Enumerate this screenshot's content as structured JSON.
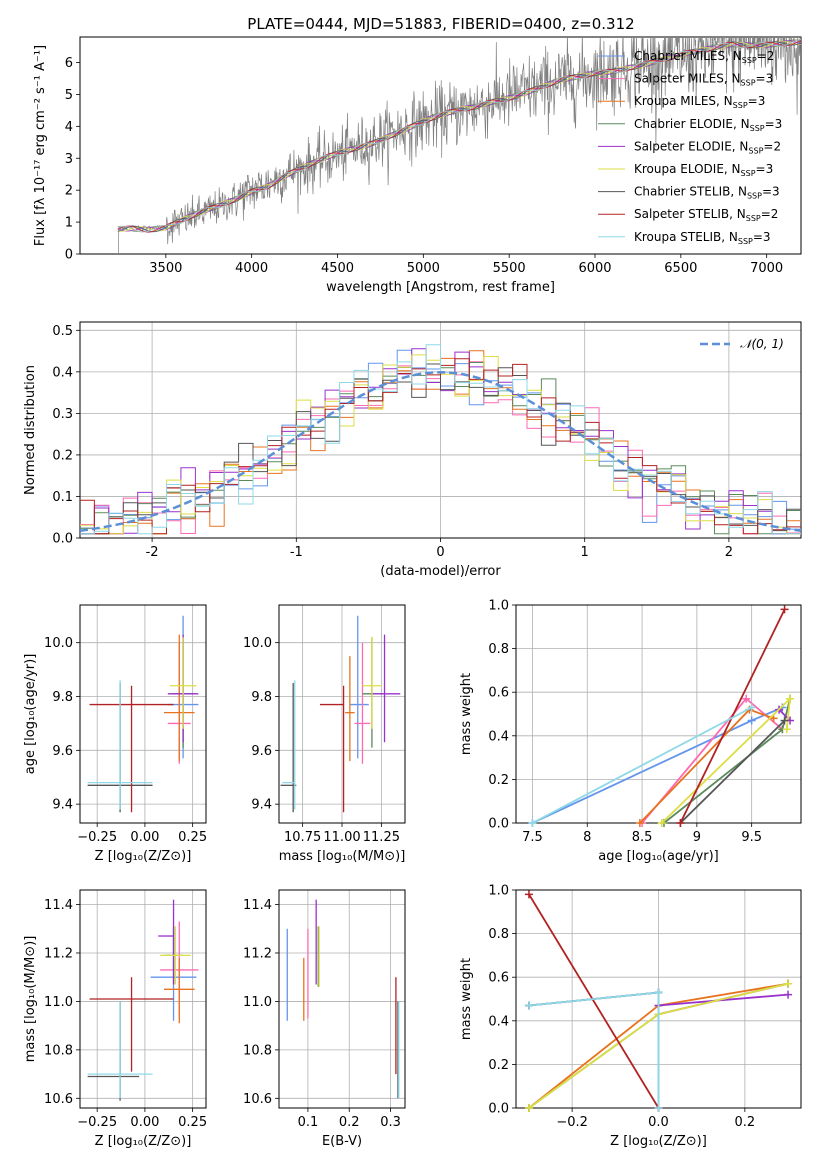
{
  "chart_data": [
    {
      "id": "spectrum",
      "type": "line",
      "title": "PLATE=0444, MJD=51883, FIBERID=0400, z=0.312",
      "xlabel": "wavelength [Angstrom, rest frame]",
      "ylabel": "Flux [fλ 10⁻¹⁷ erg cm⁻² s⁻¹ A⁻¹]",
      "xlim": [
        3000,
        7200
      ],
      "ylim": [
        0,
        6.8
      ],
      "xticks": [
        3500,
        4000,
        4500,
        5000,
        5500,
        6000,
        6500,
        7000
      ],
      "yticks": [
        0,
        1,
        2,
        3,
        4,
        5,
        6
      ],
      "grid": false,
      "legend_position": "top-right",
      "continuum_points": {
        "x": [
          3220,
          3300,
          3400,
          3500,
          3600,
          3700,
          3800,
          3900,
          4000,
          4100,
          4200,
          4300,
          4400,
          4500,
          4600,
          4700,
          4800,
          4900,
          5000,
          5100,
          5200,
          5300,
          5400,
          5500,
          5600,
          5700,
          5800,
          5900,
          6000,
          6100,
          6200,
          6300,
          6400,
          6500,
          6600,
          6700,
          6800
        ],
        "y": [
          0.8,
          0.85,
          0.82,
          0.85,
          1.05,
          1.25,
          1.45,
          1.7,
          2.0,
          2.2,
          2.5,
          2.7,
          2.9,
          3.1,
          3.3,
          3.5,
          3.75,
          3.95,
          4.15,
          4.3,
          4.45,
          4.6,
          4.8,
          4.95,
          5.1,
          5.25,
          5.4,
          5.5,
          5.65,
          5.75,
          5.9,
          6.0,
          6.1,
          6.2,
          6.3,
          6.45,
          6.6
        ]
      },
      "series": [
        {
          "name": "Chabrier MILES, N_SSP=2",
          "color": "#6495ed"
        },
        {
          "name": "Salpeter MILES, N_SSP=3",
          "color": "#ff69b4"
        },
        {
          "name": "Kroupa MILES, N_SSP=3",
          "color": "#e8731e"
        },
        {
          "name": "Chabrier ELODIE, N_SSP=3",
          "color": "#5b8a5b"
        },
        {
          "name": "Salpeter ELODIE, N_SSP=2",
          "color": "#9932cc"
        },
        {
          "name": "Kroupa ELODIE, N_SSP=3",
          "color": "#dddd44"
        },
        {
          "name": "Chabrier STELIB, N_SSP=3",
          "color": "#555555"
        },
        {
          "name": "Salpeter STELIB, N_SSP=2",
          "color": "#b22222"
        },
        {
          "name": "Kroupa STELIB, N_SSP=3",
          "color": "#8ed8e8"
        }
      ]
    },
    {
      "id": "residuals",
      "type": "line",
      "title": "",
      "xlabel": "(data-model)/error",
      "ylabel": "Normed distribution",
      "xlim": [
        -2.5,
        2.5
      ],
      "ylim": [
        0,
        0.52
      ],
      "xticks": [
        -2,
        -1,
        0,
        1,
        2
      ],
      "yticks": [
        0.0,
        0.1,
        0.2,
        0.3,
        0.4,
        0.5
      ],
      "grid": true,
      "legend_position": "top-right",
      "legend": "𝒩(0, 1)",
      "gaussian": {
        "mean": 0,
        "sigma": 1,
        "color": "#5b8fd6"
      },
      "histogram_bins": 50,
      "histogram_range": [
        -2.5,
        2.5
      ]
    },
    {
      "id": "z_vs_age",
      "type": "scatter",
      "title": "",
      "xlabel": "Z [log₁₀(Z/Z⊙)]",
      "ylabel": "age  [log₁₀(age/yr)]",
      "xlim": [
        -0.34,
        0.32
      ],
      "ylim": [
        9.33,
        10.14
      ],
      "xticks": [
        -0.25,
        0.0,
        0.25
      ],
      "xticklabels": [
        "−0.25",
        "0.00",
        "0.25"
      ],
      "yticks": [
        9.4,
        9.6,
        9.8,
        10.0
      ],
      "grid": true,
      "errorbars": [
        {
          "x": 0.2,
          "y": 9.77,
          "xerr": [
            0.08,
            0.08
          ],
          "yerr": [
            0.2,
            0.33
          ],
          "color": "#6495ed"
        },
        {
          "x": 0.18,
          "y": 9.7,
          "xerr": [
            0.06,
            0.06
          ],
          "yerr": [
            0.15,
            0.3
          ],
          "color": "#ff69b4"
        },
        {
          "x": 0.18,
          "y": 9.74,
          "xerr": [
            0.08,
            0.08
          ],
          "yerr": [
            0.18,
            0.29
          ],
          "color": "#e8731e"
        },
        {
          "x": 0.2,
          "y": 9.81,
          "xerr": [
            0.06,
            0.06
          ],
          "yerr": [
            0.2,
            0.21
          ],
          "color": "#5b8a5b"
        },
        {
          "x": 0.2,
          "y": 9.81,
          "xerr": [
            0.08,
            0.08
          ],
          "yerr": [
            0.18,
            0.22
          ],
          "color": "#9932cc"
        },
        {
          "x": 0.2,
          "y": 9.84,
          "xerr": [
            0.07,
            0.07
          ],
          "yerr": [
            0.16,
            0.18
          ],
          "color": "#dddd44"
        },
        {
          "x": -0.13,
          "y": 9.47,
          "xerr": [
            0.17,
            0.17
          ],
          "yerr": [
            0.1,
            0.38
          ],
          "color": "#555555"
        },
        {
          "x": -0.07,
          "y": 9.77,
          "xerr": [
            0.22,
            0.22
          ],
          "yerr": [
            0.4,
            0.07
          ],
          "color": "#b22222"
        },
        {
          "x": -0.13,
          "y": 9.48,
          "xerr": [
            0.17,
            0.17
          ],
          "yerr": [
            0.1,
            0.38
          ],
          "color": "#8ed8e8"
        }
      ]
    },
    {
      "id": "mass_vs_age",
      "type": "scatter",
      "title": "",
      "xlabel": "mass [log₁₀(M/M⊙)]",
      "ylabel": "",
      "xlim": [
        10.6,
        11.4
      ],
      "ylim": [
        9.33,
        10.14
      ],
      "xticks": [
        10.75,
        11.0,
        11.25
      ],
      "xticklabels": [
        "10.75",
        "11.00",
        "11.25"
      ],
      "yticks": [
        9.4,
        9.6,
        9.8,
        10.0
      ],
      "grid": true,
      "errorbars": [
        {
          "x": 11.1,
          "y": 9.77,
          "xerr": [
            0.05,
            0.07
          ],
          "yerr": [
            0.2,
            0.33
          ],
          "color": "#6495ed"
        },
        {
          "x": 11.13,
          "y": 9.7,
          "xerr": [
            0.05,
            0.05
          ],
          "yerr": [
            0.15,
            0.3
          ],
          "color": "#ff69b4"
        },
        {
          "x": 11.05,
          "y": 9.74,
          "xerr": [
            0.03,
            0.03
          ],
          "yerr": [
            0.18,
            0.21
          ],
          "color": "#e8731e"
        },
        {
          "x": 11.19,
          "y": 9.81,
          "xerr": [
            0.06,
            0.07
          ],
          "yerr": [
            0.2,
            0.21
          ],
          "color": "#5b8a5b"
        },
        {
          "x": 11.27,
          "y": 9.81,
          "xerr": [
            0.08,
            0.1
          ],
          "yerr": [
            0.18,
            0.22
          ],
          "color": "#9932cc"
        },
        {
          "x": 11.19,
          "y": 9.84,
          "xerr": [
            0.06,
            0.06
          ],
          "yerr": [
            0.16,
            0.18
          ],
          "color": "#dddd44"
        },
        {
          "x": 10.69,
          "y": 9.47,
          "xerr": [
            0.08,
            0.02
          ],
          "yerr": [
            0.1,
            0.38
          ],
          "color": "#555555"
        },
        {
          "x": 11.01,
          "y": 9.77,
          "xerr": [
            0.15,
            0.0
          ],
          "yerr": [
            0.4,
            0.07
          ],
          "color": "#b22222"
        },
        {
          "x": 10.7,
          "y": 9.48,
          "xerr": [
            0.08,
            0.0
          ],
          "yerr": [
            0.1,
            0.38
          ],
          "color": "#8ed8e8"
        }
      ]
    },
    {
      "id": "age_vs_weight",
      "type": "line",
      "title": "",
      "xlabel": "age  [log₁₀(age/yr)]",
      "ylabel": "mass weight",
      "xlim": [
        7.35,
        9.95
      ],
      "ylim": [
        0,
        1.0
      ],
      "xticks": [
        7.5,
        8.0,
        8.5,
        9.0,
        9.5
      ],
      "yticks": [
        0.0,
        0.2,
        0.4,
        0.6,
        0.8,
        1.0
      ],
      "grid": true,
      "series": [
        {
          "color": "#6495ed",
          "x": [
            7.5,
            9.5,
            9.78
          ],
          "y": [
            0.0,
            0.47,
            0.53
          ]
        },
        {
          "color": "#ff69b4",
          "x": [
            8.5,
            9.45,
            9.78
          ],
          "y": [
            0.0,
            0.57,
            0.43
          ]
        },
        {
          "color": "#e8731e",
          "x": [
            8.48,
            9.48,
            9.7
          ],
          "y": [
            0.0,
            0.52,
            0.48
          ]
        },
        {
          "color": "#5b8a5b",
          "x": [
            8.7,
            9.78,
            9.85
          ],
          "y": [
            0.0,
            0.43,
            0.57
          ]
        },
        {
          "color": "#9932cc",
          "x": [
            9.75,
            9.85
          ],
          "y": [
            0.52,
            0.47
          ]
        },
        {
          "color": "#dddd44",
          "x": [
            8.68,
            9.85,
            9.82
          ],
          "y": [
            0.0,
            0.57,
            0.43
          ]
        },
        {
          "color": "#555555",
          "x": [
            8.85,
            9.8
          ],
          "y": [
            0.0,
            0.47
          ]
        },
        {
          "color": "#b22222",
          "x": [
            8.85,
            9.8
          ],
          "y": [
            0.0,
            0.98
          ]
        },
        {
          "color": "#8ed8e8",
          "x": [
            7.5,
            9.5
          ],
          "y": [
            0.0,
            0.53
          ]
        }
      ]
    },
    {
      "id": "z_vs_mass",
      "type": "scatter",
      "title": "",
      "xlabel": "Z [log₁₀(Z/Z⊙)]",
      "ylabel": "mass [log₁₀(M/M⊙)]",
      "xlim": [
        -0.34,
        0.32
      ],
      "ylim": [
        10.56,
        11.46
      ],
      "xticks": [
        -0.25,
        0.0,
        0.25
      ],
      "xticklabels": [
        "−0.25",
        "0.00",
        "0.25"
      ],
      "yticks": [
        10.6,
        10.8,
        11.0,
        11.2,
        11.4
      ],
      "grid": true,
      "errorbars": [
        {
          "x": 0.15,
          "y": 11.1,
          "xerr": [
            0.12,
            0.12
          ],
          "yerr": [
            0.18,
            0.2
          ],
          "color": "#6495ed"
        },
        {
          "x": 0.18,
          "y": 11.13,
          "xerr": [
            0.1,
            0.1
          ],
          "yerr": [
            0.2,
            0.2
          ],
          "color": "#ff69b4"
        },
        {
          "x": 0.18,
          "y": 11.05,
          "xerr": [
            0.08,
            0.08
          ],
          "yerr": [
            0.14,
            0.13
          ],
          "color": "#e8731e"
        },
        {
          "x": 0.15,
          "y": 11.19,
          "xerr": [
            0.05,
            0.05
          ],
          "yerr": [
            0.12,
            0.12
          ],
          "color": "#5b8a5b"
        },
        {
          "x": 0.15,
          "y": 11.27,
          "xerr": [
            0.08,
            0.0
          ],
          "yerr": [
            0.2,
            0.15
          ],
          "color": "#9932cc"
        },
        {
          "x": 0.16,
          "y": 11.19,
          "xerr": [
            0.08,
            0.08
          ],
          "yerr": [
            0.12,
            0.12
          ],
          "color": "#dddd44"
        },
        {
          "x": -0.13,
          "y": 10.69,
          "xerr": [
            0.17,
            0.1
          ],
          "yerr": [
            0.1,
            0.31
          ],
          "color": "#555555"
        },
        {
          "x": -0.07,
          "y": 11.01,
          "xerr": [
            0.22,
            0.22
          ],
          "yerr": [
            0.3,
            0.09
          ],
          "color": "#b22222"
        },
        {
          "x": -0.13,
          "y": 10.7,
          "xerr": [
            0.17,
            0.17
          ],
          "yerr": [
            0.1,
            0.3
          ],
          "color": "#8ed8e8"
        }
      ]
    },
    {
      "id": "ebv_vs_mass",
      "type": "scatter",
      "title": "",
      "xlabel": "E(B-V)",
      "ylabel": "",
      "xlim": [
        0.03,
        0.335
      ],
      "ylim": [
        10.56,
        11.46
      ],
      "xticks": [
        0.1,
        0.2,
        0.3
      ],
      "xticklabels": [
        "0.1",
        "0.2",
        "0.3"
      ],
      "yticks": [
        10.6,
        10.8,
        11.0,
        11.2,
        11.4
      ],
      "grid": true,
      "errorbars": [
        {
          "x": 0.05,
          "y": 11.1,
          "xerr": [
            0,
            0
          ],
          "yerr": [
            0.18,
            0.2
          ],
          "color": "#6495ed"
        },
        {
          "x": 0.1,
          "y": 11.13,
          "xerr": [
            0,
            0
          ],
          "yerr": [
            0.2,
            0.17
          ],
          "color": "#ff69b4"
        },
        {
          "x": 0.09,
          "y": 11.05,
          "xerr": [
            0,
            0
          ],
          "yerr": [
            0.13,
            0.13
          ],
          "color": "#e8731e"
        },
        {
          "x": 0.125,
          "y": 11.19,
          "xerr": [
            0,
            0
          ],
          "yerr": [
            0.13,
            0.12
          ],
          "color": "#5b8a5b"
        },
        {
          "x": 0.12,
          "y": 11.27,
          "xerr": [
            0,
            0
          ],
          "yerr": [
            0.2,
            0.15
          ],
          "color": "#9932cc"
        },
        {
          "x": 0.127,
          "y": 11.19,
          "xerr": [
            0,
            0
          ],
          "yerr": [
            0.13,
            0.12
          ],
          "color": "#dddd44"
        },
        {
          "x": 0.318,
          "y": 10.75,
          "xerr": [
            0,
            0
          ],
          "yerr": [
            0.15,
            0.25
          ],
          "color": "#555555"
        },
        {
          "x": 0.313,
          "y": 10.9,
          "xerr": [
            0,
            0
          ],
          "yerr": [
            0.2,
            0.2
          ],
          "color": "#b22222"
        },
        {
          "x": 0.32,
          "y": 10.8,
          "xerr": [
            0,
            0
          ],
          "yerr": [
            0.2,
            0.2
          ],
          "color": "#8ed8e8"
        }
      ]
    },
    {
      "id": "z_vs_weight",
      "type": "line",
      "title": "",
      "xlabel": "Z [log₁₀(Z/Z⊙)]",
      "ylabel": "mass weight",
      "xlim": [
        -0.33,
        0.33
      ],
      "ylim": [
        0,
        1.0
      ],
      "xticks": [
        -0.2,
        0.0,
        0.2
      ],
      "xticklabels": [
        "−0.2",
        "0.0",
        "0.2"
      ],
      "yticks": [
        0.0,
        0.2,
        0.4,
        0.6,
        0.8,
        1.0
      ],
      "grid": true,
      "series": [
        {
          "color": "#6495ed",
          "x": [
            -0.3,
            0.0,
            0.0
          ],
          "y": [
            0.47,
            0.53,
            0.0
          ]
        },
        {
          "color": "#ff69b4",
          "x": [
            0.0,
            0.3
          ],
          "y": [
            0.43,
            0.57
          ]
        },
        {
          "color": "#e8731e",
          "x": [
            -0.3,
            0.0,
            0.3
          ],
          "y": [
            0.0,
            0.47,
            0.57
          ]
        },
        {
          "color": "#5b8a5b",
          "x": [
            -0.3,
            0.0,
            0.3
          ],
          "y": [
            0.0,
            0.43,
            0.57
          ]
        },
        {
          "color": "#9932cc",
          "x": [
            0.0,
            0.3
          ],
          "y": [
            0.47,
            0.52
          ]
        },
        {
          "color": "#dddd44",
          "x": [
            -0.3,
            0.0,
            0.3
          ],
          "y": [
            0.0,
            0.43,
            0.57
          ]
        },
        {
          "color": "#555555",
          "x": [
            -0.3,
            0.0
          ],
          "y": [
            0.47,
            0.53
          ]
        },
        {
          "color": "#b22222",
          "x": [
            -0.3,
            0.0
          ],
          "y": [
            0.98,
            0.0
          ]
        },
        {
          "color": "#8ed8e8",
          "x": [
            -0.3,
            0.0,
            0.0
          ],
          "y": [
            0.47,
            0.53,
            0.0
          ]
        }
      ]
    }
  ]
}
